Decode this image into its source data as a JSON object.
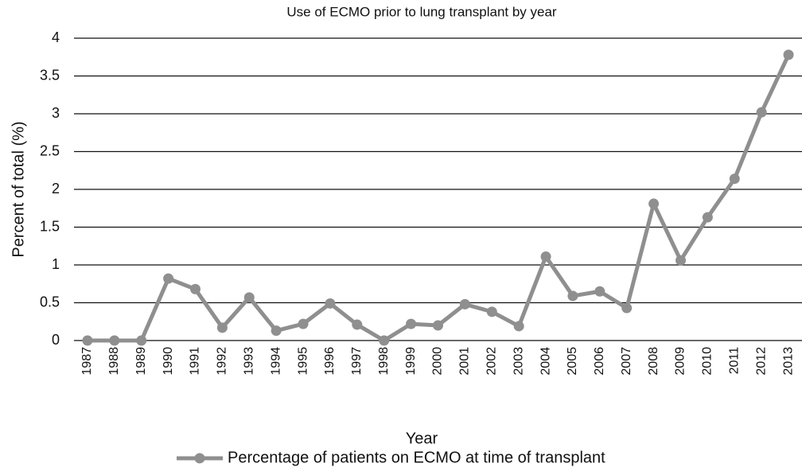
{
  "chart_data": {
    "type": "line",
    "title": "Use of ECMO prior to lung transplant by year",
    "x_label": "Year",
    "y_label": "Percent of total (%)",
    "categories": [
      "1987",
      "1988",
      "1989",
      "1990",
      "1991",
      "1992",
      "1993",
      "1994",
      "1995",
      "1996",
      "1997",
      "1998",
      "1999",
      "2000",
      "2001",
      "2002",
      "2003",
      "2004",
      "2005",
      "2006",
      "2007",
      "2008",
      "2009",
      "2010",
      "2011",
      "2012",
      "2013"
    ],
    "series": [
      {
        "name": "Percentage of patients on ECMO at time of transplant",
        "color": "#8f8f8f",
        "values": [
          0,
          0,
          0,
          0.82,
          0.68,
          0.17,
          0.57,
          0.13,
          0.22,
          0.49,
          0.21,
          0,
          0.22,
          0.2,
          0.48,
          0.38,
          0.19,
          1.11,
          0.59,
          0.65,
          0.43,
          1.81,
          1.06,
          1.63,
          2.14,
          3.02,
          3.78
        ]
      }
    ],
    "ylim": [
      0,
      4
    ],
    "yticks": [
      0,
      0.5,
      1,
      1.5,
      2,
      2.5,
      3,
      3.5,
      4
    ],
    "grid": true,
    "legend": "bottom"
  }
}
